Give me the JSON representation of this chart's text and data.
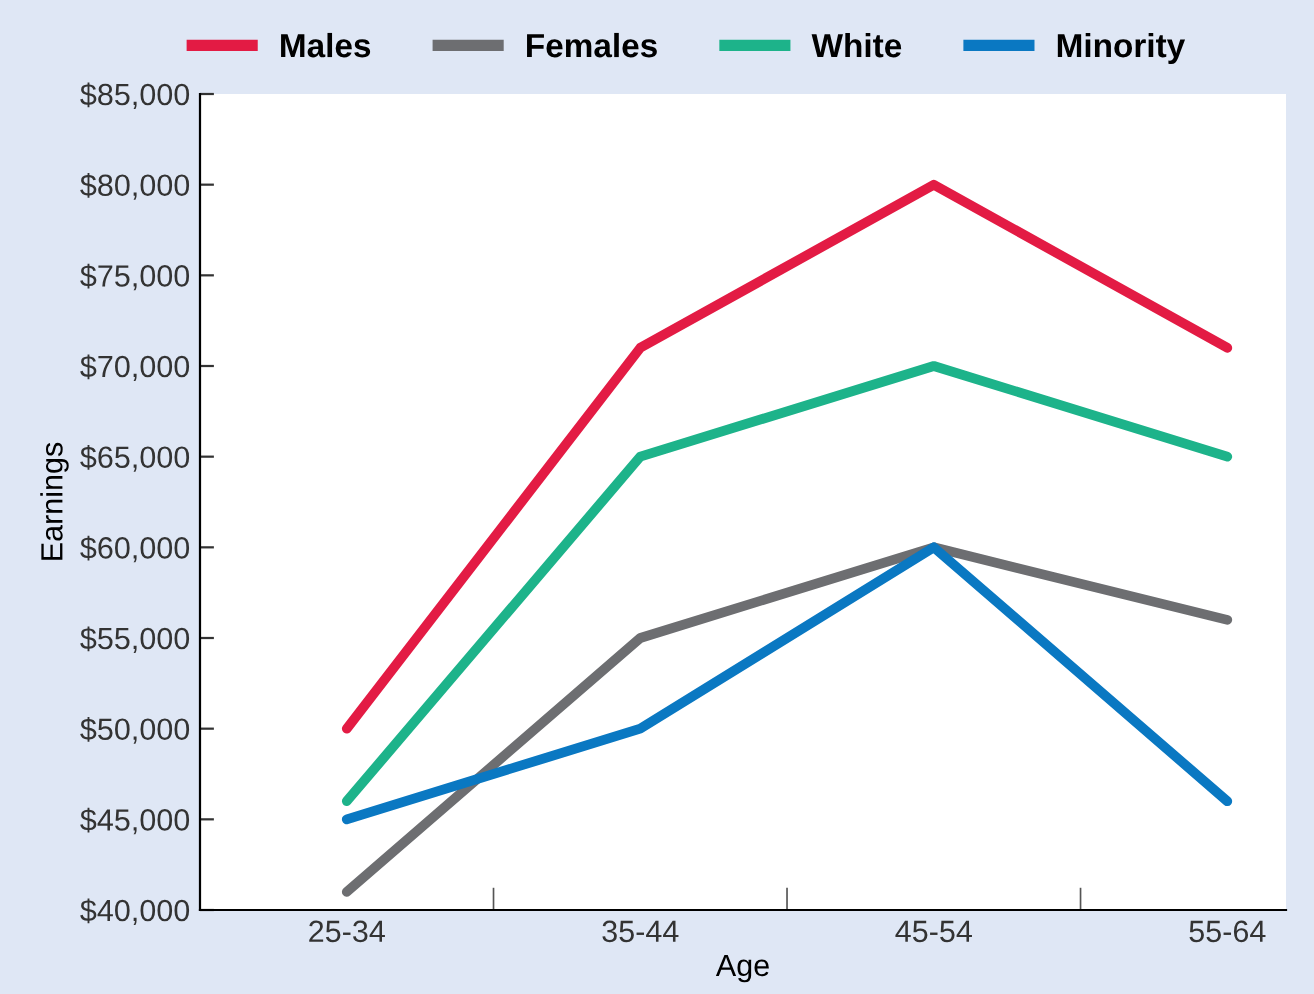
{
  "chart_data": {
    "type": "line",
    "xlabel": "Age",
    "ylabel": "Earnings",
    "categories": [
      "25-34",
      "35-44",
      "45-54",
      "55-64"
    ],
    "series": [
      {
        "name": "Males",
        "color": "#e31b44",
        "values": [
          50000,
          71000,
          80000,
          71000
        ]
      },
      {
        "name": "Females",
        "color": "#6d6e71",
        "values": [
          41000,
          55000,
          60000,
          56000
        ]
      },
      {
        "name": "White",
        "color": "#1db38a",
        "values": [
          46000,
          65000,
          70000,
          65000
        ]
      },
      {
        "name": "Minority",
        "color": "#0a78c2",
        "values": [
          45000,
          50000,
          60000,
          46000
        ]
      }
    ],
    "ylim": [
      40000,
      85000
    ],
    "yticks": [
      {
        "value": 40000,
        "label": "$40,000"
      },
      {
        "value": 45000,
        "label": "$45,000"
      },
      {
        "value": 50000,
        "label": "$50,000"
      },
      {
        "value": 55000,
        "label": "$55,000"
      },
      {
        "value": 60000,
        "label": "$60,000"
      },
      {
        "value": 65000,
        "label": "$65,000"
      },
      {
        "value": 70000,
        "label": "$70,000"
      },
      {
        "value": 75000,
        "label": "$75,000"
      },
      {
        "value": 80000,
        "label": "$80,000"
      },
      {
        "value": 85000,
        "label": "$85,000"
      }
    ],
    "grid": false,
    "legend": "top",
    "marker": "none",
    "line_style": "solid"
  }
}
